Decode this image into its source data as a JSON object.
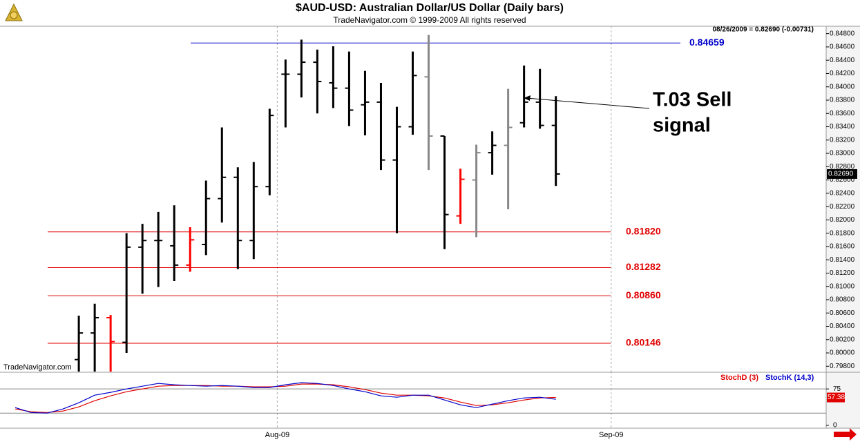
{
  "chart_data": [
    {
      "type": "ohlc",
      "title": "$AUD-USD:  Australian Dollar/US Dollar  (Daily bars)",
      "subtitle": "TradeNavigator.com © 1999-2009 All rights reserved",
      "info": "08/26/2009 = 0.82690 (-0.00731)",
      "watermark": "TradeNavigator.com",
      "categories": [
        null,
        null,
        null,
        null,
        null,
        null,
        null,
        null,
        null,
        null,
        null,
        null,
        null,
        null,
        null,
        null,
        null,
        null,
        null,
        null,
        null,
        null,
        null,
        null,
        null,
        null,
        null,
        null,
        null,
        null,
        null,
        null,
        null,
        null,
        null
      ],
      "open": [
        null,
        null,
        null,
        null,
        0.799,
        0.803,
        0.8053,
        0.8016,
        0.8159,
        0.8169,
        0.8161,
        0.8132,
        0.8163,
        0.8232,
        0.8264,
        0.8169,
        0.825,
        0.8419,
        0.8419,
        0.8437,
        0.8406,
        0.8398,
        0.8373,
        0.8377,
        0.829,
        0.834,
        0.8415,
        0.8326,
        0.8206,
        0.826,
        0.8301,
        0.8312,
        0.8346,
        0.8377,
        0.8342
      ],
      "high": [
        null,
        null,
        null,
        null,
        0.8056,
        0.8074,
        0.8057,
        0.818,
        0.8194,
        0.8212,
        0.8222,
        0.8189,
        0.8259,
        0.8339,
        0.8279,
        0.8287,
        0.8367,
        0.8441,
        0.8471,
        0.8456,
        0.8461,
        0.8453,
        0.8424,
        0.8406,
        0.837,
        0.8453,
        0.8478,
        0.8326,
        0.8277,
        0.8313,
        0.8333,
        0.8397,
        0.8432,
        0.8427,
        0.8386
      ],
      "low": [
        null,
        null,
        null,
        null,
        0.7972,
        0.7972,
        0.7972,
        0.8,
        0.8089,
        0.8099,
        0.8108,
        0.8122,
        0.8147,
        0.8196,
        0.8126,
        0.8141,
        0.8237,
        0.8339,
        0.8384,
        0.836,
        0.8368,
        0.8341,
        0.8327,
        0.8275,
        0.818,
        0.8328,
        0.8275,
        0.8156,
        0.8194,
        0.8174,
        0.8268,
        0.8216,
        0.8339,
        0.8337,
        0.8251
      ],
      "close": [
        null,
        null,
        null,
        null,
        0.803,
        0.8053,
        0.8017,
        0.8159,
        0.8169,
        0.8169,
        0.8132,
        0.817,
        0.8232,
        0.8264,
        0.8169,
        0.825,
        0.8357,
        0.8419,
        0.8437,
        0.8408,
        0.8398,
        0.8365,
        0.8377,
        0.829,
        0.834,
        0.8417,
        0.8326,
        0.8208,
        0.8261,
        0.8301,
        0.8312,
        0.8339,
        0.8377,
        0.8342,
        0.8269
      ],
      "bar_colors": [
        null,
        null,
        null,
        null,
        "#000000",
        "#000000",
        "#ff0000",
        "#000000",
        "#000000",
        "#000000",
        "#000000",
        "#ff0000",
        "#000000",
        "#000000",
        "#000000",
        "#000000",
        "#000000",
        "#000000",
        "#000000",
        "#000000",
        "#000000",
        "#000000",
        "#000000",
        "#000000",
        "#000000",
        "#000000",
        "#888888",
        "#000000",
        "#ff0000",
        "#888888",
        "#000000",
        "#888888",
        "#000000",
        "#000000",
        "#000000"
      ],
      "xlim": [
        -0.957,
        51
      ],
      "xticks": [
        {
          "value": 16.48,
          "label": "Aug-09"
        },
        {
          "value": 37.48,
          "label": "Sep-09"
        }
      ],
      "ylim": [
        0.7972,
        0.8489
      ],
      "yticks": [
        {
          "value": 0.798,
          "label": "0.79800"
        },
        {
          "value": 0.8,
          "label": "0.80000"
        },
        {
          "value": 0.802,
          "label": "0.80200"
        },
        {
          "value": 0.804,
          "label": "0.80400"
        },
        {
          "value": 0.806,
          "label": "0.80600"
        },
        {
          "value": 0.808,
          "label": "0.80800"
        },
        {
          "value": 0.81,
          "label": "0.81000"
        },
        {
          "value": 0.812,
          "label": "0.81200"
        },
        {
          "value": 0.814,
          "label": "0.81400"
        },
        {
          "value": 0.816,
          "label": "0.81600"
        },
        {
          "value": 0.818,
          "label": "0.81800"
        },
        {
          "value": 0.82,
          "label": "0.82000"
        },
        {
          "value": 0.822,
          "label": "0.82200"
        },
        {
          "value": 0.824,
          "label": "0.82400"
        },
        {
          "value": 0.826,
          "label": "0.82600"
        },
        {
          "value": 0.828,
          "label": "0.82800"
        },
        {
          "value": 0.83,
          "label": "0.83000"
        },
        {
          "value": 0.832,
          "label": "0.83200"
        },
        {
          "value": 0.834,
          "label": "0.83400"
        },
        {
          "value": 0.836,
          "label": "0.83600"
        },
        {
          "value": 0.838,
          "label": "0.83800"
        },
        {
          "value": 0.84,
          "label": "0.84000"
        },
        {
          "value": 0.842,
          "label": "0.84200"
        },
        {
          "value": 0.844,
          "label": "0.84400"
        },
        {
          "value": 0.846,
          "label": "0.84600"
        },
        {
          "value": 0.848,
          "label": "0.84800"
        }
      ],
      "levels": [
        {
          "value": 0.84659,
          "label": "0.84659",
          "color": "#0000cc"
        },
        {
          "value": 0.8182,
          "label": "0.81820",
          "color": "#e00000"
        },
        {
          "value": 0.81282,
          "label": "0.81282",
          "color": "#e00000"
        },
        {
          "value": 0.8086,
          "label": "0.80860",
          "color": "#e00000"
        },
        {
          "value": 0.80146,
          "label": "0.80146",
          "color": "#e00000"
        }
      ],
      "last_price": {
        "value": 0.8269,
        "label": "0.82690"
      },
      "annotation": [
        "T.03 Sell",
        "signal"
      ]
    },
    {
      "type": "line",
      "xlim": [
        -0.957,
        51
      ],
      "ylim": [
        -6,
        108
      ],
      "yticks": [
        0,
        75
      ],
      "ref_lines": [
        25,
        75
      ],
      "series": [
        {
          "name": "StochD (3)",
          "color": "#e00000",
          "values": [
            33.6,
            27.9,
            26.4,
            29.3,
            37.9,
            50.7,
            60.7,
            69.3,
            75,
            80.7,
            82.1,
            82.1,
            82.1,
            80.7,
            80.7,
            79.3,
            79.3,
            80.7,
            85,
            85,
            83.6,
            79.3,
            73.6,
            66.4,
            62.1,
            62.1,
            60.7,
            56.4,
            47.9,
            40.7,
            42.1,
            46.4,
            52.1,
            56.4,
            57.38
          ]
        },
        {
          "name": "StochK (14,3)",
          "color": "#0000cc",
          "values": [
            36.4,
            26.4,
            25,
            33.6,
            46.4,
            62.1,
            67.9,
            75,
            80.7,
            86.4,
            83.6,
            82.1,
            80.7,
            82.1,
            80.7,
            77.9,
            77.9,
            83.6,
            87.9,
            86.4,
            82.1,
            75,
            69.3,
            60.7,
            57.9,
            62.1,
            62.1,
            52.1,
            42.1,
            36.4,
            43.6,
            50.7,
            56.4,
            57.9,
            53.6
          ]
        }
      ]
    }
  ]
}
